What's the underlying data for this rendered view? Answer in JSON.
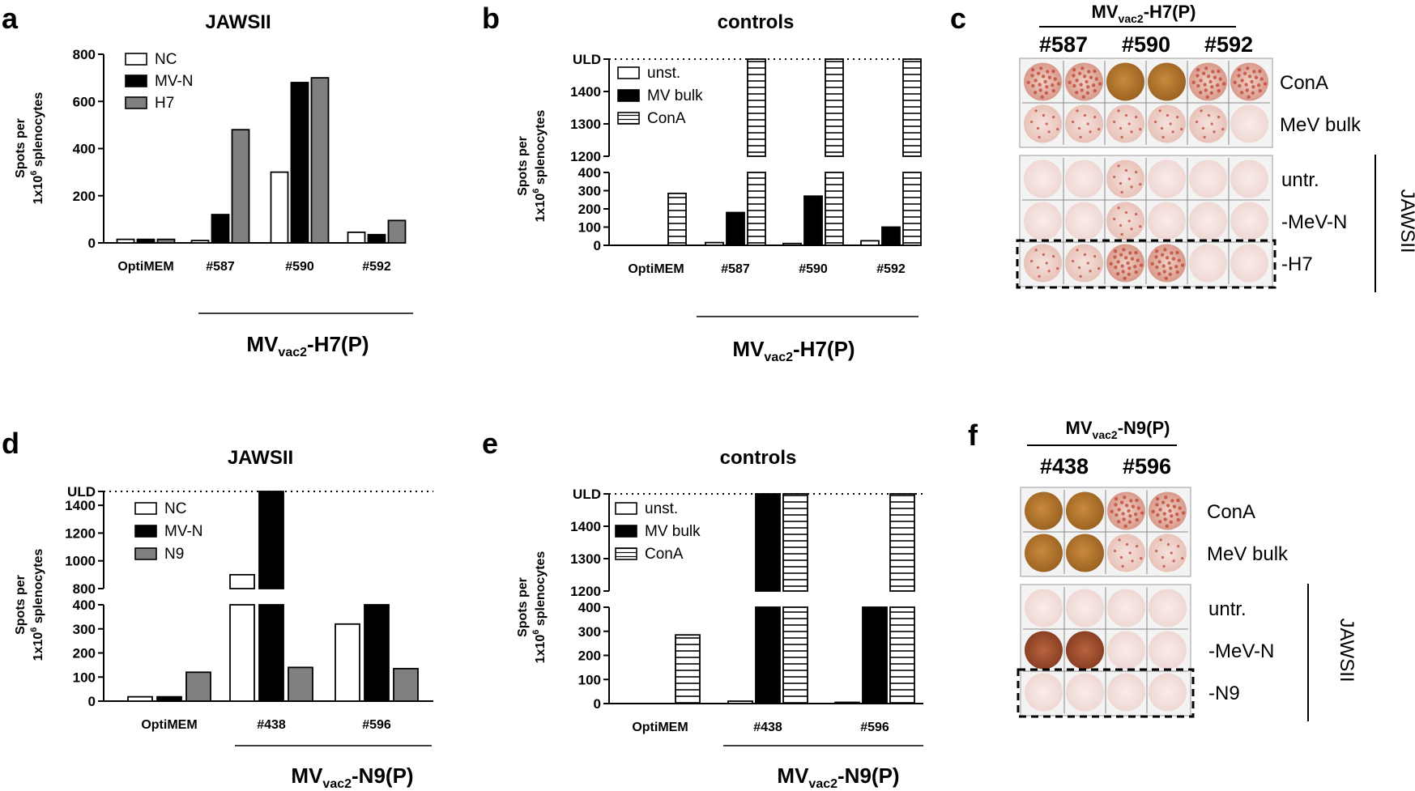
{
  "figure": {
    "labels": [
      "a",
      "b",
      "c",
      "d",
      "e",
      "f"
    ],
    "units_suffix": " splenocytes",
    "y_axis_label_line1": "Spots per",
    "y_axis_label_line2_prefix": "1x10",
    "y_axis_label_line2_sup": "6"
  },
  "colors": {
    "NC": "#ffffff",
    "MV-N": "#000000",
    "H7": "#808080",
    "N9": "#808080",
    "unst.": "#ffffff",
    "MV bulk": "#000000",
    "ConA": "hatch"
  },
  "chart_data": [
    {
      "id": "a",
      "type": "bar",
      "title": "JAWSII",
      "categories": [
        "OptiMEM",
        "#587",
        "#590",
        "#592"
      ],
      "series": [
        {
          "name": "NC",
          "values": [
            15,
            10,
            300,
            45
          ]
        },
        {
          "name": "MV-N",
          "values": [
            15,
            120,
            680,
            35
          ]
        },
        {
          "name": "H7",
          "values": [
            15,
            480,
            700,
            95
          ]
        }
      ],
      "ylim": [
        0,
        800
      ],
      "yticks": [
        0,
        200,
        400,
        600,
        800
      ],
      "group_label": {
        "main": "MV",
        "sub": "vac2",
        "rest": "-H7(P)"
      },
      "legend": "top-left"
    },
    {
      "id": "b",
      "type": "bar",
      "title": "controls",
      "categories": [
        "OptiMEM",
        "#587",
        "#590",
        "#592"
      ],
      "series": [
        {
          "name": "unst.",
          "values": [
            0,
            15,
            10,
            25
          ]
        },
        {
          "name": "MV bulk",
          "values": [
            0,
            180,
            270,
            100
          ]
        },
        {
          "name": "ConA",
          "values": [
            285,
            "ULD",
            "ULD",
            "ULD"
          ]
        }
      ],
      "broken_axis": {
        "lower": [
          0,
          400
        ],
        "lower_ticks": [
          0,
          100,
          200,
          300,
          400
        ],
        "upper": [
          1200,
          1500
        ],
        "upper_ticks": [
          1200,
          1300,
          1400
        ],
        "top_label": "ULD"
      },
      "group_label": {
        "main": "MV",
        "sub": "vac2",
        "rest": "-H7(P)"
      },
      "legend": "top-left"
    },
    {
      "id": "d",
      "type": "bar",
      "title": "JAWSII",
      "categories": [
        "OptiMEM",
        "#438",
        "#596"
      ],
      "series": [
        {
          "name": "NC",
          "values": [
            18,
            900,
            320
          ]
        },
        {
          "name": "MV-N",
          "values": [
            18,
            "ULD",
            400
          ]
        },
        {
          "name": "N9",
          "values": [
            120,
            140,
            135
          ]
        }
      ],
      "broken_axis": {
        "lower": [
          0,
          400
        ],
        "lower_ticks": [
          0,
          100,
          200,
          300,
          400
        ],
        "upper": [
          800,
          1500
        ],
        "upper_ticks": [
          800,
          1000,
          1200,
          1400
        ],
        "top_label": "ULD"
      },
      "group_label": {
        "main": "MV",
        "sub": "vac2",
        "rest": "-N9(P)"
      },
      "legend": "top-left"
    },
    {
      "id": "e",
      "type": "bar",
      "title": "controls",
      "categories": [
        "OptiMEM",
        "#438",
        "#596"
      ],
      "series": [
        {
          "name": "unst.",
          "values": [
            0,
            10,
            5
          ]
        },
        {
          "name": "MV bulk",
          "values": [
            0,
            "ULD",
            400
          ]
        },
        {
          "name": "ConA",
          "values": [
            285,
            "ULD",
            "ULD"
          ]
        }
      ],
      "broken_axis": {
        "lower": [
          0,
          400
        ],
        "lower_ticks": [
          0,
          100,
          200,
          300,
          400
        ],
        "upper": [
          1200,
          1500
        ],
        "upper_ticks": [
          1200,
          1300,
          1400
        ],
        "top_label": "ULD"
      },
      "group_label": {
        "main": "MV",
        "sub": "vac2",
        "rest": "-N9(P)"
      },
      "legend": "top-left"
    }
  ],
  "plates": [
    {
      "id": "c",
      "title": {
        "main": "MV",
        "sub": "vac2",
        "rest": "-H7(P)"
      },
      "headers": [
        "#587",
        "#590",
        "#592"
      ],
      "rows_top": [
        "ConA",
        "MeV bulk"
      ],
      "rows_bottom": [
        "untr.",
        "-MeV-N",
        "-H7"
      ],
      "side_label": "JAWSII",
      "wells_top": [
        [
          "spots",
          "spots",
          "full",
          "full",
          "spots",
          "spots"
        ],
        [
          "light",
          "light",
          "light",
          "light",
          "light",
          "faint"
        ]
      ],
      "wells_bottom": [
        [
          "faint",
          "faint",
          "light",
          "faint",
          "faint",
          "faint"
        ],
        [
          "faint",
          "faint",
          "light",
          "faint",
          "faint",
          "faint"
        ],
        [
          "light",
          "light",
          "spots",
          "spots",
          "faint",
          "faint"
        ]
      ]
    },
    {
      "id": "f",
      "title": {
        "main": "MV",
        "sub": "vac2",
        "rest": "-N9(P)"
      },
      "headers": [
        "#438",
        "#596"
      ],
      "rows_top": [
        "ConA",
        "MeV bulk"
      ],
      "rows_bottom": [
        "untr.",
        "-MeV-N",
        "-N9"
      ],
      "side_label": "JAWSII",
      "wells_top": [
        [
          "full",
          "full",
          "spots",
          "spots"
        ],
        [
          "full",
          "full",
          "light",
          "light"
        ]
      ],
      "wells_bottom": [
        [
          "faint",
          "faint",
          "faint",
          "faint"
        ],
        [
          "dark",
          "dark",
          "faint",
          "faint"
        ],
        [
          "faint",
          "faint",
          "faint",
          "faint"
        ]
      ]
    }
  ]
}
